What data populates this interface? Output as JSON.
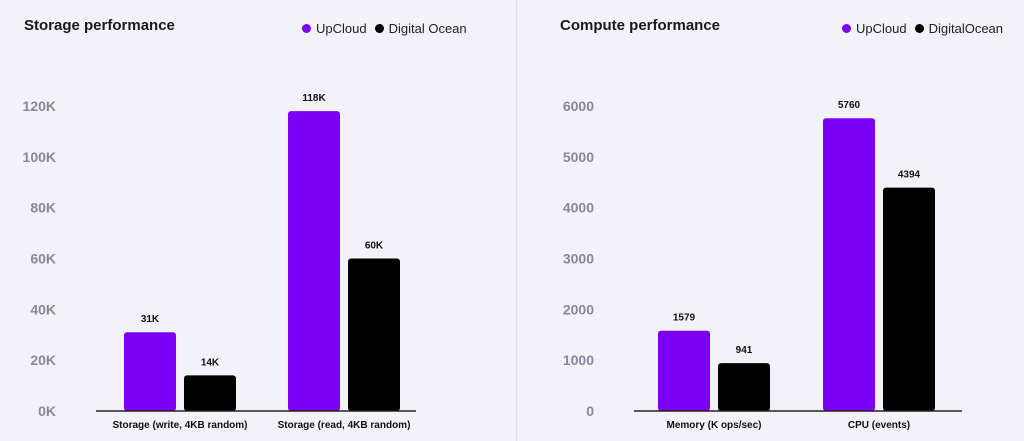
{
  "colors": {
    "upcloud": "#7b00f5",
    "digitalocean": "#000000"
  },
  "chart_data": [
    {
      "type": "bar",
      "title": "Storage performance",
      "legend": [
        "UpCloud",
        "Digital Ocean"
      ],
      "legend_position": "top-right",
      "categories": [
        "Storage (write, 4KB random)",
        "Storage (read, 4KB random)"
      ],
      "series": [
        {
          "name": "UpCloud",
          "values": [
            31000,
            118000
          ],
          "labels": [
            "31K",
            "118K"
          ]
        },
        {
          "name": "Digital Ocean",
          "values": [
            14000,
            60000
          ],
          "labels": [
            "14K",
            "60K"
          ]
        }
      ],
      "ylim": [
        0,
        120000
      ],
      "yticks": [
        0,
        20000,
        40000,
        60000,
        80000,
        100000,
        120000
      ],
      "ytick_labels": [
        "0K",
        "20K",
        "40K",
        "60K",
        "80K",
        "100K",
        "120K"
      ],
      "grid": false
    },
    {
      "type": "bar",
      "title": "Compute performance",
      "legend": [
        "UpCloud",
        "DigitalOcean"
      ],
      "legend_position": "top-right",
      "categories": [
        "Memory (K ops/sec)",
        "CPU (events)"
      ],
      "series": [
        {
          "name": "UpCloud",
          "values": [
            1579,
            5760
          ],
          "labels": [
            "1579",
            "5760"
          ]
        },
        {
          "name": "DigitalOcean",
          "values": [
            941,
            4394
          ],
          "labels": [
            "941",
            "4394"
          ]
        }
      ],
      "ylim": [
        0,
        6000
      ],
      "yticks": [
        0,
        1000,
        2000,
        3000,
        4000,
        5000,
        6000
      ],
      "ytick_labels": [
        "0",
        "1000",
        "2000",
        "3000",
        "4000",
        "5000",
        "6000"
      ],
      "grid": false
    }
  ]
}
